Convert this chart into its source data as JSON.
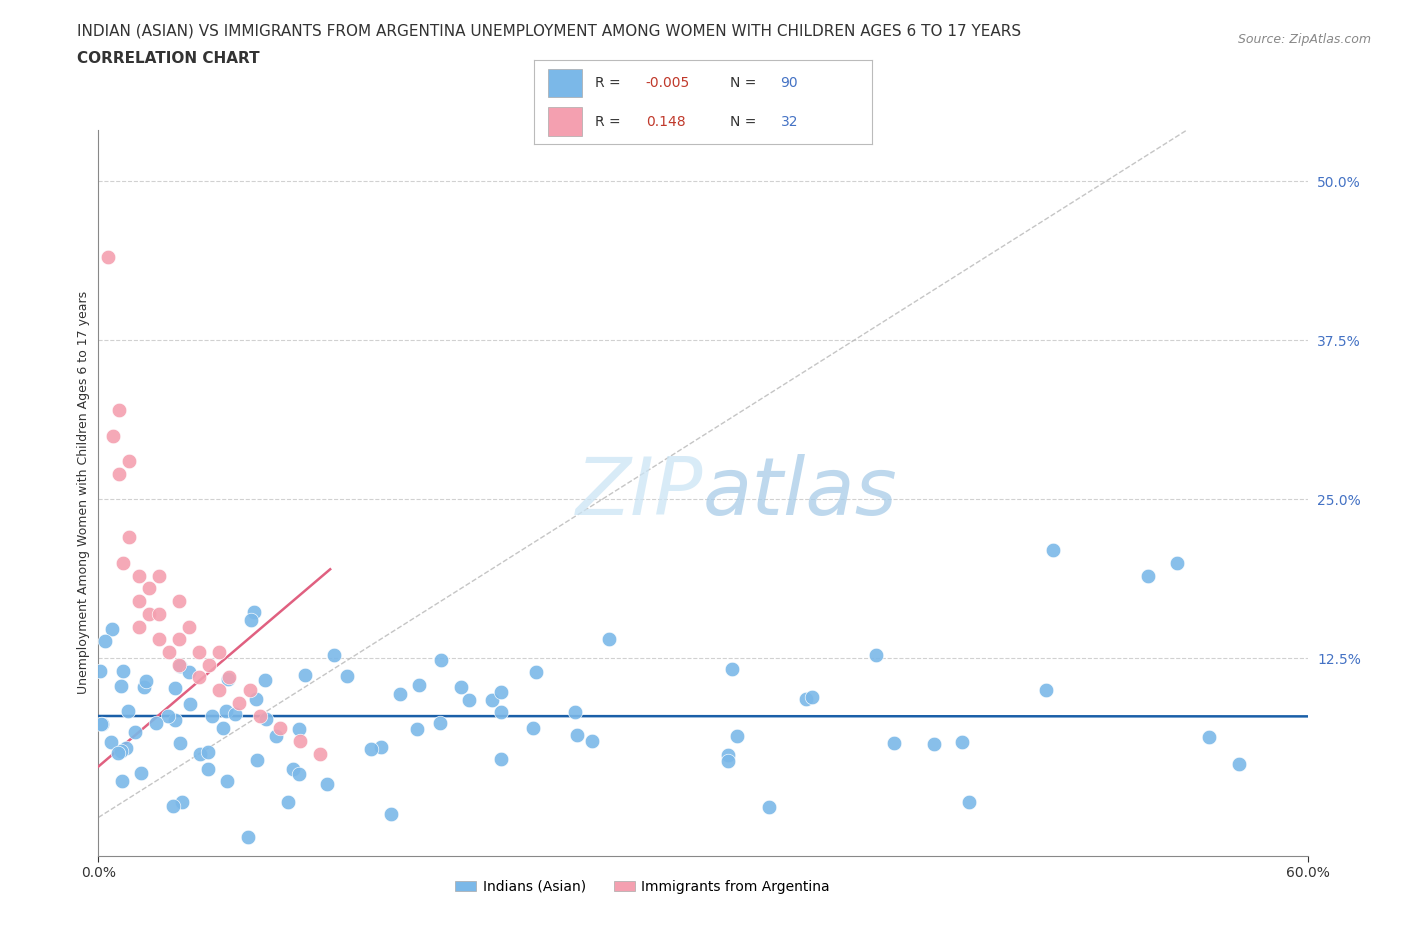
{
  "title_line1": "INDIAN (ASIAN) VS IMMIGRANTS FROM ARGENTINA UNEMPLOYMENT AMONG WOMEN WITH CHILDREN AGES 6 TO 17 YEARS",
  "title_line2": "CORRELATION CHART",
  "source_text": "Source: ZipAtlas.com",
  "ylabel": "Unemployment Among Women with Children Ages 6 to 17 years",
  "xlim": [
    0.0,
    0.6
  ],
  "ylim": [
    -0.03,
    0.54
  ],
  "ytick_positions": [
    0.0,
    0.125,
    0.25,
    0.375,
    0.5
  ],
  "ytick_labels_right": [
    "",
    "12.5%",
    "25.0%",
    "37.5%",
    "50.0%"
  ],
  "grid_color": "#cccccc",
  "background_color": "#ffffff",
  "legend_r1": "-0.005",
  "legend_n1": "90",
  "legend_r2": "0.148",
  "legend_n2": "32",
  "series1_color": "#7bb8e8",
  "series2_color": "#f4a0b0",
  "series1_label": "Indians (Asian)",
  "series2_label": "Immigrants from Argentina",
  "series1_line_color": "#1a5fa8",
  "series2_line_color": "#e06080",
  "diagonal_color": "#bbbbbb",
  "title_fontsize": 11,
  "source_fontsize": 9,
  "axis_label_fontsize": 9,
  "tick_fontsize": 10
}
